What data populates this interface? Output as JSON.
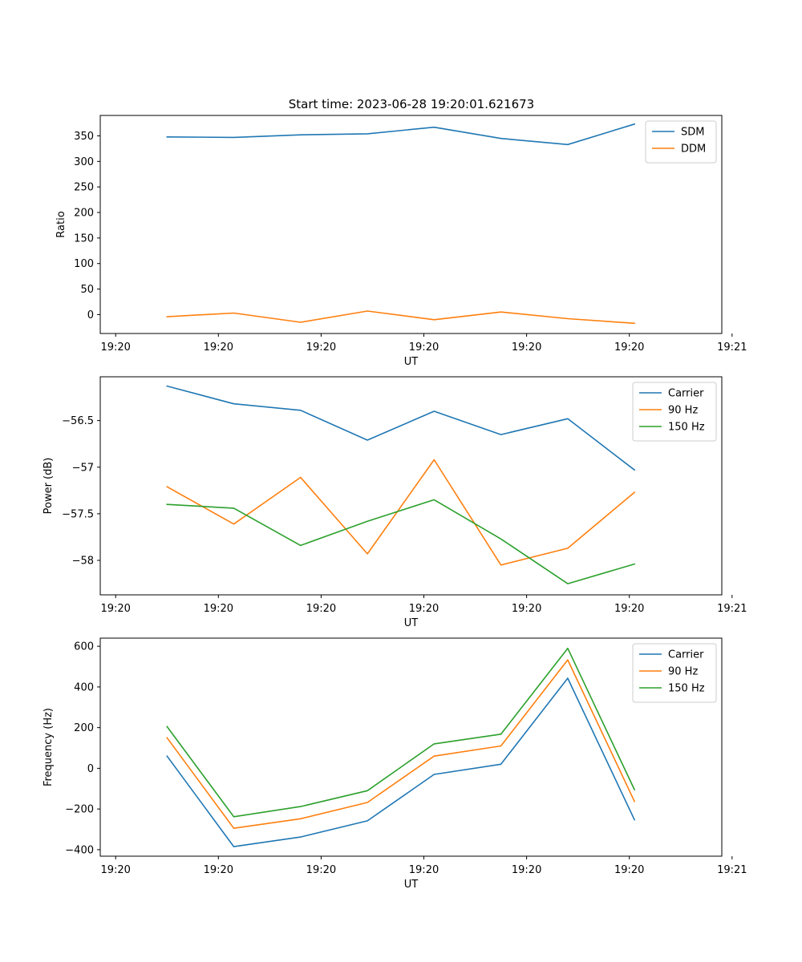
{
  "figure_title": "Start time: 2023-06-28 19:20:01.621673",
  "colors": {
    "blue": "#1f77b4",
    "orange": "#ff7f0e",
    "green": "#2ca02c"
  },
  "chart_data": [
    {
      "type": "line",
      "title": "Start time: 2023-06-28 19:20:01.621673",
      "xlabel": "UT",
      "ylabel": "Ratio",
      "x_tick_labels": [
        "19:20",
        "19:20",
        "19:20",
        "19:20",
        "19:20",
        "19:20",
        "19:21"
      ],
      "xlim": [
        -0.15,
        5.9
      ],
      "x": [
        0.5,
        1.15,
        1.8,
        2.45,
        3.1,
        3.75,
        4.4,
        5.05
      ],
      "yticks": [
        0,
        50,
        100,
        150,
        200,
        250,
        300,
        350
      ],
      "ylim": [
        -37,
        390
      ],
      "legend": "top-right",
      "grid": false,
      "series": [
        {
          "name": "SDM",
          "color": "#1f77b4",
          "values": [
            348,
            347,
            352,
            354,
            367,
            345,
            333,
            373
          ]
        },
        {
          "name": "DDM",
          "color": "#ff7f0e",
          "values": [
            -4,
            3,
            -15,
            7,
            -10,
            5,
            -8,
            -17
          ]
        }
      ]
    },
    {
      "type": "line",
      "xlabel": "UT",
      "ylabel": "Power (dB)",
      "x_tick_labels": [
        "19:20",
        "19:20",
        "19:20",
        "19:20",
        "19:20",
        "19:20",
        "19:21"
      ],
      "xlim": [
        -0.15,
        5.9
      ],
      "x": [
        0.5,
        1.15,
        1.8,
        2.45,
        3.1,
        3.75,
        4.4,
        5.05
      ],
      "yticks": [
        -56.5,
        -57.0,
        -57.5,
        -58.0
      ],
      "ylim": [
        -58.37,
        -56.03
      ],
      "legend": "top-right",
      "grid": false,
      "series": [
        {
          "name": "Carrier",
          "color": "#1f77b4",
          "values": [
            -56.13,
            -56.32,
            -56.39,
            -56.71,
            -56.4,
            -56.65,
            -56.48,
            -57.03
          ]
        },
        {
          "name": "90 Hz",
          "color": "#ff7f0e",
          "values": [
            -57.21,
            -57.61,
            -57.11,
            -57.93,
            -56.92,
            -58.05,
            -57.87,
            -57.27
          ]
        },
        {
          "name": "150 Hz",
          "color": "#2ca02c",
          "values": [
            -57.4,
            -57.44,
            -57.84,
            -57.58,
            -57.35,
            -57.77,
            -58.25,
            -58.04
          ]
        }
      ]
    },
    {
      "type": "line",
      "xlabel": "UT",
      "ylabel": "Frequency (Hz)",
      "x_tick_labels": [
        "19:20",
        "19:20",
        "19:20",
        "19:20",
        "19:20",
        "19:20",
        "19:21"
      ],
      "xlim": [
        -0.15,
        5.9
      ],
      "x": [
        0.5,
        1.15,
        1.8,
        2.45,
        3.1,
        3.75,
        4.4,
        5.05
      ],
      "yticks": [
        600,
        400,
        200,
        0,
        -200,
        -400
      ],
      "ylim": [
        -432,
        640
      ],
      "legend": "top-right",
      "grid": false,
      "series": [
        {
          "name": "Carrier",
          "color": "#1f77b4",
          "values": [
            60,
            -385,
            -338,
            -258,
            -30,
            20,
            443,
            -253
          ]
        },
        {
          "name": "90 Hz",
          "color": "#ff7f0e",
          "values": [
            150,
            -295,
            -248,
            -168,
            60,
            110,
            533,
            -163
          ]
        },
        {
          "name": "150 Hz",
          "color": "#2ca02c",
          "values": [
            205,
            -238,
            -188,
            -110,
            120,
            168,
            590,
            -105
          ]
        }
      ]
    }
  ]
}
